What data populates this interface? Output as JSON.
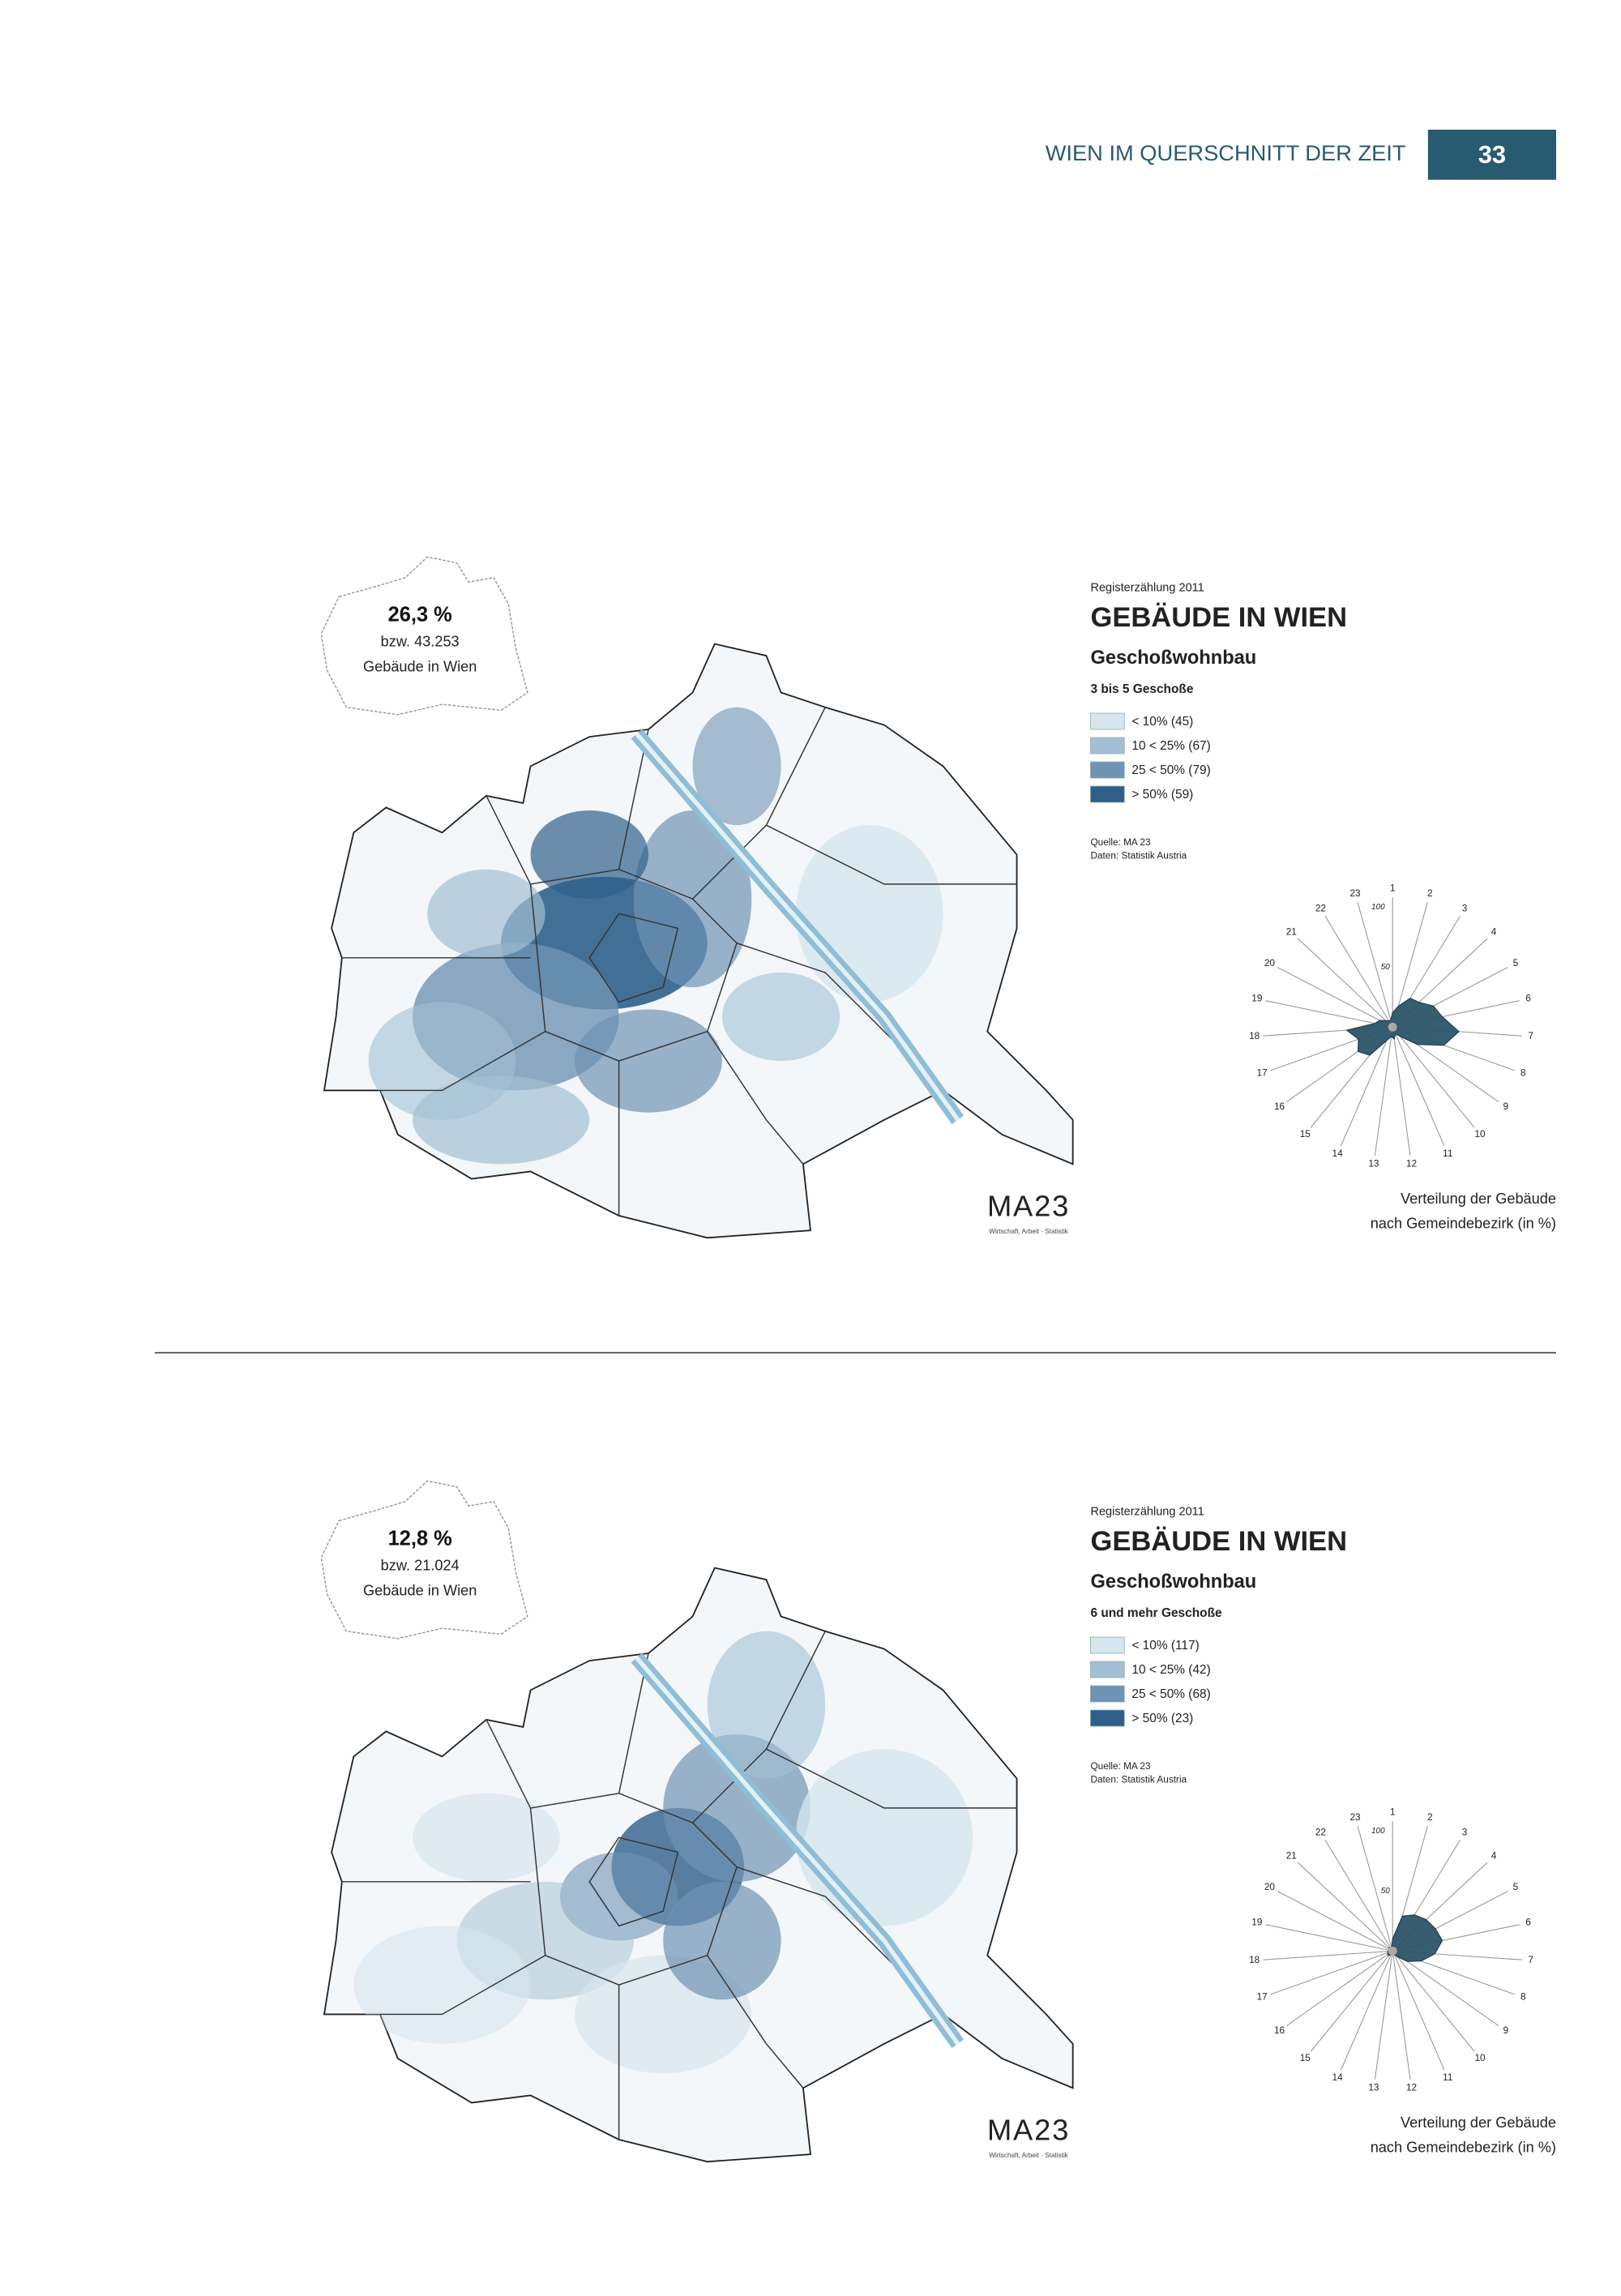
{
  "header": {
    "title": "WIEN IM QUERSCHNITT DER ZEIT",
    "page_number": "33"
  },
  "panels": [
    {
      "summary": {
        "percent": "26,3 %",
        "count": "bzw. 43.253",
        "label": "Gebäude in Wien"
      },
      "legend": {
        "kicker": "Registerzählung 2011",
        "title": "GEBÄUDE IN WIEN",
        "subtitle": "Geschoßwohnbau",
        "category": "3 bis 5 Geschoße",
        "entries": [
          {
            "label": "< 10% (45)",
            "color": "#d5e6ee"
          },
          {
            "label": "10 < 25% (67)",
            "color": "#a3bfd3"
          },
          {
            "label": "25 < 50% (79)",
            "color": "#6f93b4"
          },
          {
            "label": "> 50% (59)",
            "color": "#2f5f8a"
          }
        ],
        "source": "Quelle: MA 23",
        "data_source": "Daten: Statistik Austria"
      },
      "logo": {
        "name": "MA23",
        "tagline": "Wirtschaft, Arbeit · Statistik"
      },
      "radar": {
        "type": "radar",
        "categories": [
          "1",
          "2",
          "3",
          "4",
          "5",
          "6",
          "7",
          "8",
          "9",
          "10",
          "11",
          "12",
          "13",
          "14",
          "15",
          "16",
          "17",
          "18",
          "19",
          "20",
          "21",
          "22",
          "23"
        ],
        "values": [
          12,
          18,
          28,
          30,
          38,
          42,
          55,
          45,
          25,
          10,
          6,
          10,
          8,
          12,
          30,
          35,
          30,
          38,
          15,
          12,
          8,
          6,
          6
        ],
        "color": "#2c5468",
        "rlim": [
          0,
          100
        ],
        "rticks": [
          50,
          100
        ]
      },
      "caption": [
        "Verteilung der Gebäude",
        "nach Gemeindebezirk (in %)"
      ]
    },
    {
      "summary": {
        "percent": "12,8 %",
        "count": "bzw. 21.024",
        "label": "Gebäude in Wien"
      },
      "legend": {
        "kicker": "Registerzählung 2011",
        "title": "GEBÄUDE IN WIEN",
        "subtitle": "Geschoßwohnbau",
        "category": "6 und mehr Geschoße",
        "entries": [
          {
            "label": "< 10% (117)",
            "color": "#d5e6ee"
          },
          {
            "label": "10 < 25% (42)",
            "color": "#a3bfd3"
          },
          {
            "label": "25 < 50% (68)",
            "color": "#6f93b4"
          },
          {
            "label": "> 50% (23)",
            "color": "#2f5f8a"
          }
        ],
        "source": "Quelle: MA 23",
        "data_source": "Daten: Statistik Austria"
      },
      "logo": {
        "name": "MA23",
        "tagline": "Wirtschaft, Arbeit · Statistik"
      },
      "radar": {
        "type": "radar",
        "categories": [
          "1",
          "2",
          "3",
          "4",
          "5",
          "6",
          "7",
          "8",
          "9",
          "10",
          "11",
          "12",
          "13",
          "14",
          "15",
          "16",
          "17",
          "18",
          "19",
          "20",
          "21",
          "22",
          "23"
        ],
        "values": [
          10,
          30,
          35,
          38,
          40,
          42,
          35,
          25,
          15,
          6,
          3,
          3,
          3,
          3,
          5,
          5,
          4,
          4,
          3,
          3,
          4,
          3,
          3
        ],
        "color": "#2c5468",
        "rlim": [
          0,
          100
        ],
        "rticks": [
          50,
          100
        ]
      },
      "caption": [
        "Verteilung der Gebäude",
        "nach Gemeindebezirk (in %)"
      ]
    }
  ]
}
